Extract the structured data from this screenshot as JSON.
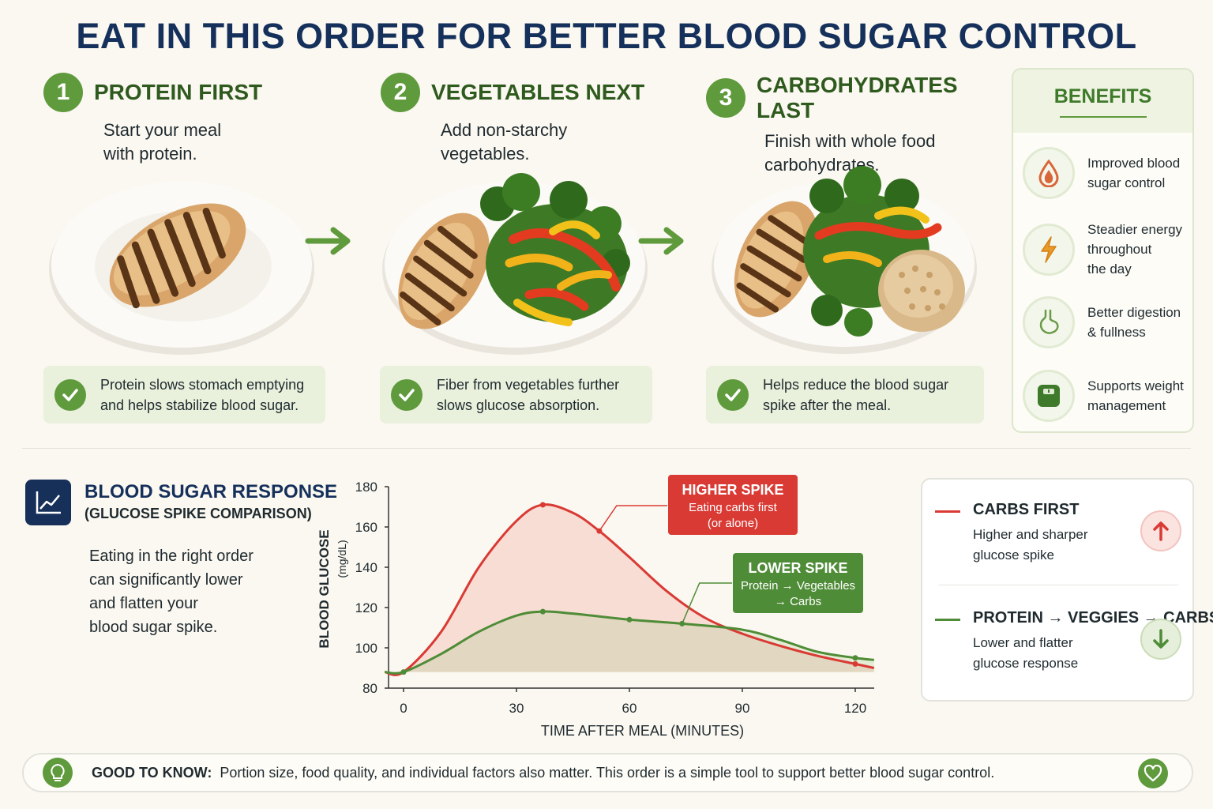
{
  "title": "EAT IN THIS ORDER FOR BETTER BLOOD SUGAR CONTROL",
  "steps": [
    {
      "num": "1",
      "title": "PROTEIN FIRST",
      "text": "Start your meal\n with protein.",
      "tip": "Protein slows stomach emptying\nand helps stabilize blood sugar."
    },
    {
      "num": "2",
      "title": "VEGETABLES NEXT",
      "text": "Add non-starchy\n vegetables.",
      "tip": "Fiber from vegetables further\nslows glucose absorption."
    },
    {
      "num": "3",
      "title": "CARBOHYDRATES LAST",
      "text": "Finish with whole food\n carbohydrates.",
      "tip": "Helps reduce the blood sugar\nspike after the meal."
    }
  ],
  "benefits": {
    "title": "BENEFITS",
    "items": [
      {
        "icon": "blood-drop-icon",
        "text": "Improved blood\nsugar control"
      },
      {
        "icon": "lightning-icon",
        "text": "Steadier energy\nthroughout\nthe day"
      },
      {
        "icon": "stomach-icon",
        "text": "Better digestion\n& fullness"
      },
      {
        "icon": "scale-icon",
        "text": "Supports weight\nmanagement"
      }
    ]
  },
  "response": {
    "title": "BLOOD SUGAR RESPONSE",
    "subtitle": "(GLUCOSE SPIKE COMPARISON)",
    "body": "Eating in the right order\ncan significantly lower\nand flatten your\nblood sugar spike."
  },
  "chart_data": {
    "type": "line",
    "xlabel": "TIME AFTER MEAL (MINUTES)",
    "ylabel": "BLOOD GLUCOSE",
    "ylabel_unit": "(mg/dL)",
    "xlim": [
      0,
      120
    ],
    "ylim": [
      80,
      180
    ],
    "xticks": [
      0,
      30,
      60,
      90,
      120
    ],
    "yticks": [
      80,
      100,
      120,
      140,
      160,
      180
    ],
    "series": [
      {
        "name": "CARBS FIRST",
        "color": "#d93a34",
        "x": [
          -5,
          0,
          10,
          20,
          30,
          37,
          45,
          52,
          60,
          70,
          80,
          90,
          100,
          110,
          120,
          125
        ],
        "y": [
          88,
          88,
          108,
          140,
          163,
          171,
          167,
          158,
          145,
          128,
          115,
          107,
          101,
          96,
          92,
          90
        ],
        "markers": [
          {
            "x": 37,
            "y": 171
          },
          {
            "x": 52,
            "y": 158
          },
          {
            "x": 120,
            "y": 92
          }
        ]
      },
      {
        "name": "PROTEIN → VEGGIES → CARBS",
        "color": "#4f8c37",
        "x": [
          -5,
          0,
          10,
          20,
          30,
          37,
          45,
          60,
          74,
          90,
          100,
          110,
          120,
          125
        ],
        "y": [
          88,
          88,
          97,
          108,
          116,
          118,
          117,
          114,
          112,
          109,
          104,
          98,
          95,
          94
        ],
        "markers": [
          {
            "x": 0,
            "y": 88
          },
          {
            "x": 37,
            "y": 118
          },
          {
            "x": 60,
            "y": 114
          },
          {
            "x": 74,
            "y": 112
          },
          {
            "x": 120,
            "y": 95
          }
        ]
      }
    ],
    "annotations": [
      {
        "title": "HIGHER SPIKE",
        "text1": "Eating carbs first",
        "text2": "(or alone)",
        "color": "#d93a34",
        "point": {
          "x": 52,
          "y": 158
        }
      },
      {
        "title": "LOWER SPIKE",
        "text1": "Protein → Vegetables",
        "text2": "→ Carbs",
        "color": "#4f8c37",
        "point": {
          "x": 74,
          "y": 112
        }
      }
    ]
  },
  "legend": [
    {
      "title": "CARBS FIRST",
      "desc": "Higher and sharper\nglucose spike",
      "color": "#d93a34",
      "icon": "arrow-up-icon"
    },
    {
      "title": "PROTEIN → VEGGIES → CARBS",
      "desc": "Lower and flatter\nglucose response",
      "color": "#4f8c37",
      "icon": "arrow-down-icon"
    }
  ],
  "note": {
    "label": "GOOD TO KNOW:",
    "text": "Portion size, food quality, and individual factors also matter. This order is a simple tool to support better blood sugar control."
  }
}
